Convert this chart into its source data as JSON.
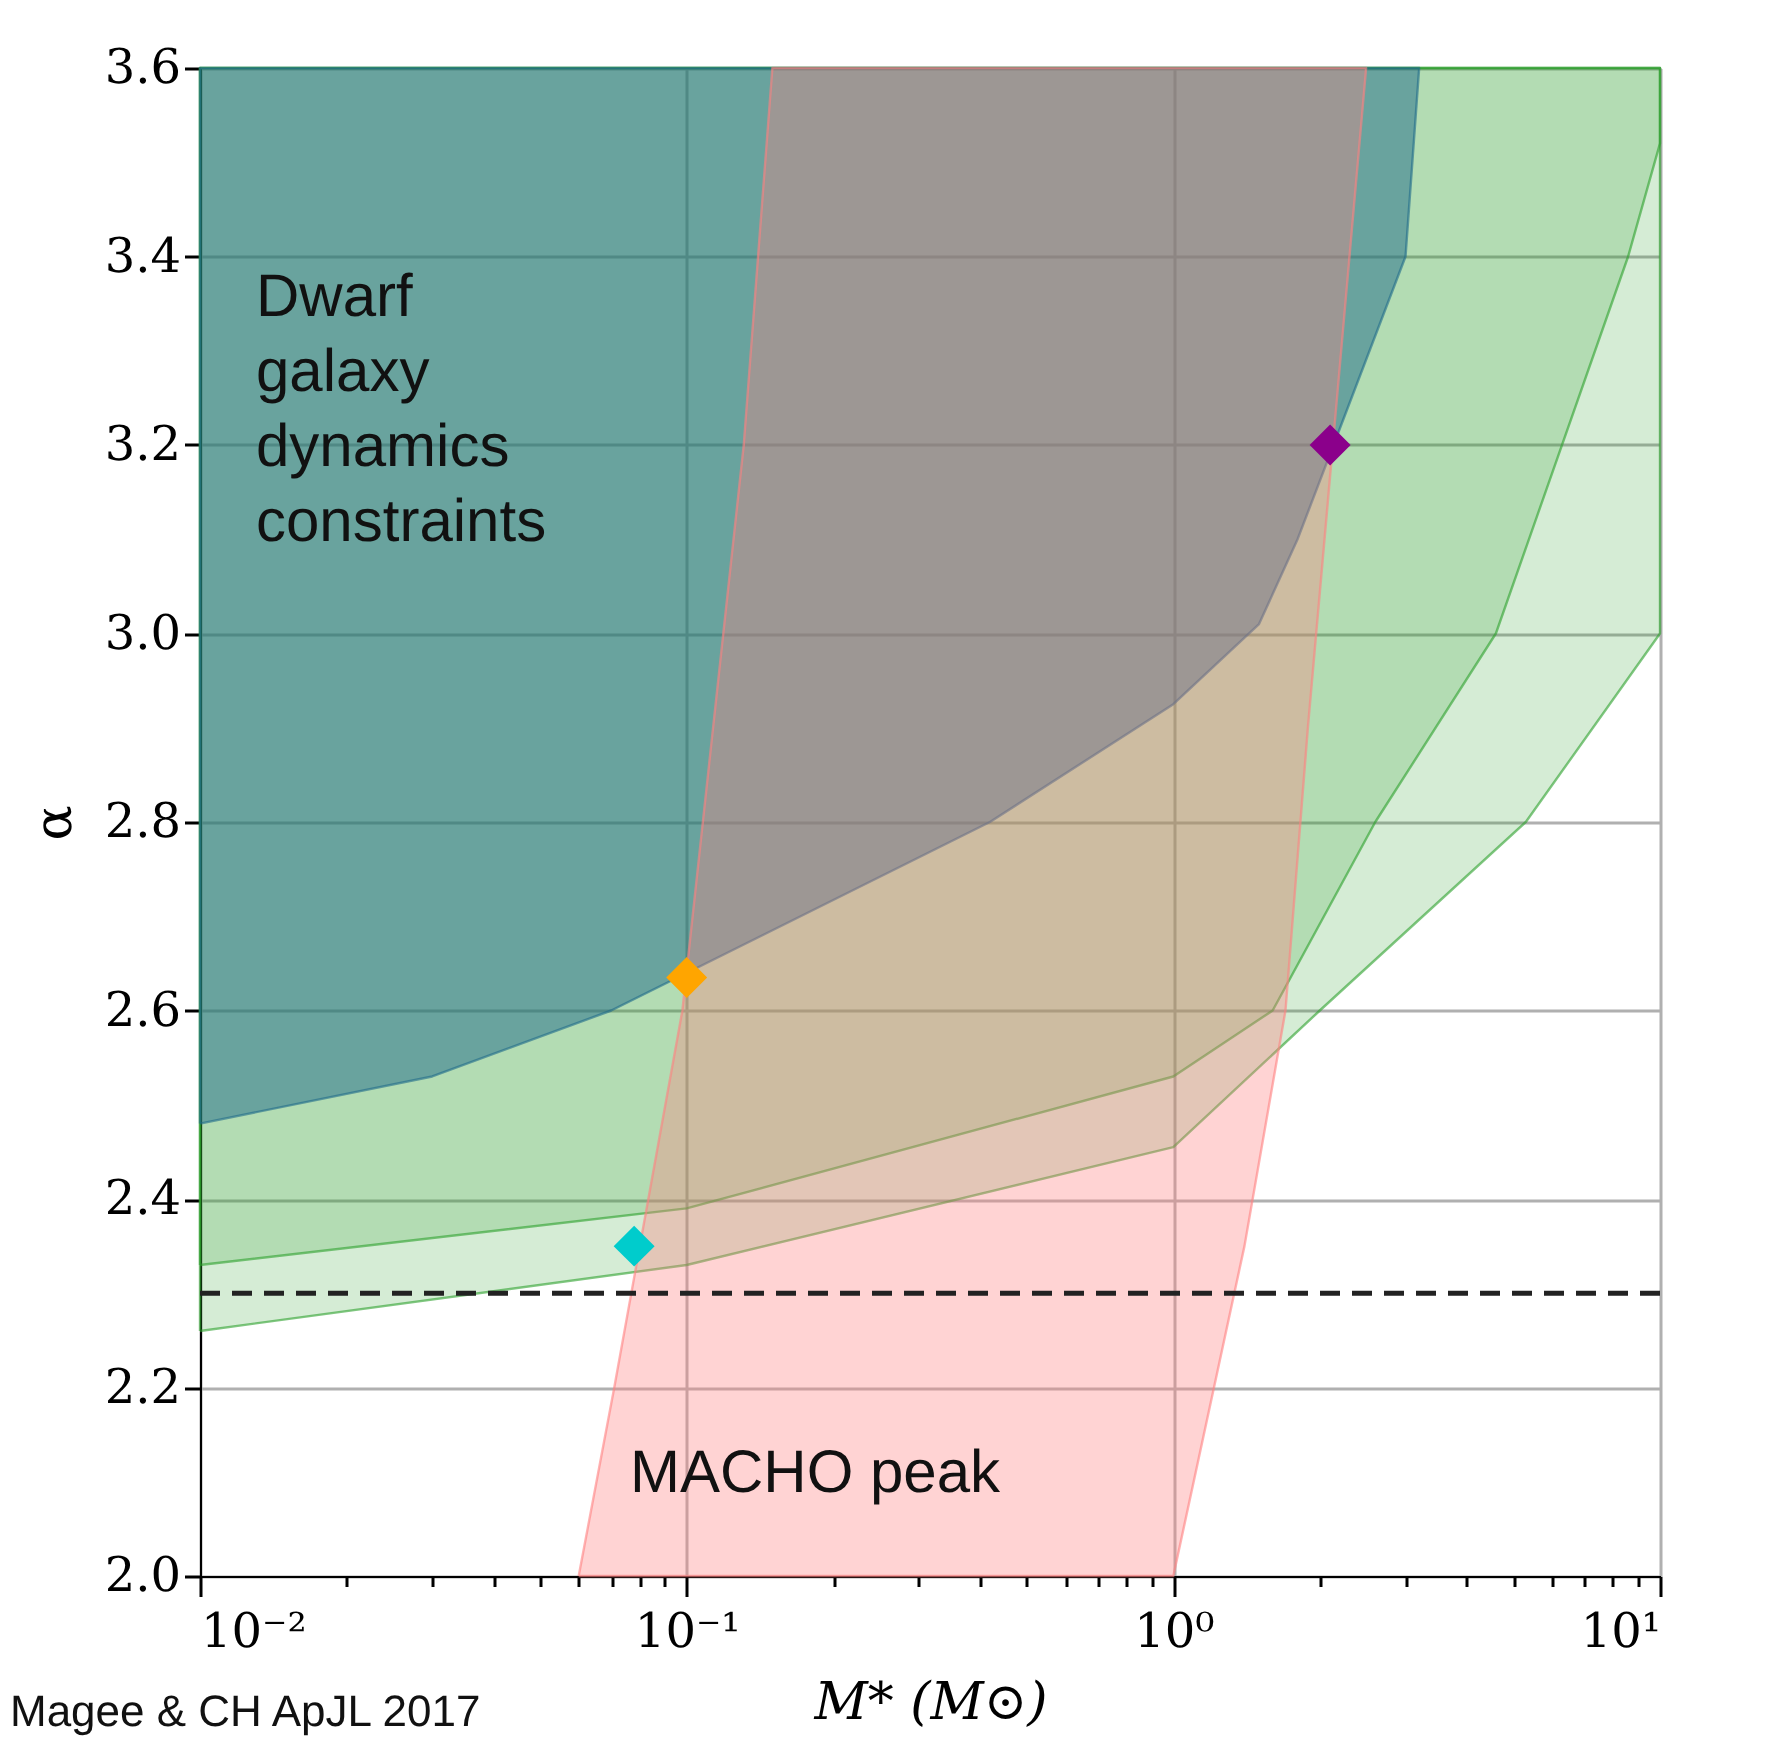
{
  "chart_data": {
    "type": "area",
    "xlabel": "M* (M⊙)",
    "ylabel": "α",
    "log": "x",
    "grid": true,
    "legend": false,
    "xlim": [
      0.01,
      10
    ],
    "ylim": [
      2.0,
      3.6
    ],
    "xticks": [
      {
        "value": 0.01,
        "label": "10⁻²"
      },
      {
        "value": 0.02,
        "label": null
      },
      {
        "value": 0.03,
        "label": null
      },
      {
        "value": 0.04,
        "label": null
      },
      {
        "value": 0.05,
        "label": null
      },
      {
        "value": 0.06,
        "label": null
      },
      {
        "value": 0.07,
        "label": null
      },
      {
        "value": 0.08,
        "label": null
      },
      {
        "value": 0.09,
        "label": null
      },
      {
        "value": 0.1,
        "label": "10⁻¹"
      },
      {
        "value": 0.2,
        "label": null
      },
      {
        "value": 0.3,
        "label": null
      },
      {
        "value": 0.4,
        "label": null
      },
      {
        "value": 0.5,
        "label": null
      },
      {
        "value": 0.6,
        "label": null
      },
      {
        "value": 0.7,
        "label": null
      },
      {
        "value": 0.8,
        "label": null
      },
      {
        "value": 0.9,
        "label": null
      },
      {
        "value": 1,
        "label": "10⁰"
      },
      {
        "value": 2,
        "label": null
      },
      {
        "value": 3,
        "label": null
      },
      {
        "value": 4,
        "label": null
      },
      {
        "value": 5,
        "label": null
      },
      {
        "value": 6,
        "label": null
      },
      {
        "value": 7,
        "label": null
      },
      {
        "value": 8,
        "label": null
      },
      {
        "value": 9,
        "label": null
      },
      {
        "value": 10,
        "label": "10¹"
      }
    ],
    "yticks": [
      {
        "value": 2.0,
        "label": "2.0"
      },
      {
        "value": 2.2,
        "label": "2.2"
      },
      {
        "value": 2.4,
        "label": "2.4"
      },
      {
        "value": 2.6,
        "label": "2.6"
      },
      {
        "value": 2.8,
        "label": "2.8"
      },
      {
        "value": 3.0,
        "label": "3.0"
      },
      {
        "value": 3.2,
        "label": "3.2"
      },
      {
        "value": 3.4,
        "label": "3.4"
      },
      {
        "value": 3.6,
        "label": "3.6"
      }
    ],
    "series": [
      {
        "color": "#2ca02c",
        "x": [
          0.01,
          0.1,
          1.0,
          2.0,
          5.3,
          10,
          10,
          0.01
        ],
        "values": [
          2.26,
          2.33,
          2.455,
          2.6,
          2.8,
          3.0,
          3.6,
          3.6
        ]
      },
      {
        "color": "#2ca02c",
        "x": [
          0.01,
          0.1,
          1.0,
          1.6,
          2.6,
          4.6,
          8.6,
          10,
          10,
          0.01
        ],
        "values": [
          2.33,
          2.39,
          2.53,
          2.6,
          2.8,
          3.0,
          3.4,
          3.52,
          3.6,
          3.6
        ]
      },
      {
        "color": "#1f6a8a",
        "x": [
          0.01,
          0.03,
          0.07,
          0.42,
          1.0,
          1.5,
          1.8,
          3.0,
          3.2,
          0.01
        ],
        "values": [
          2.48,
          2.53,
          2.6,
          2.8,
          2.925,
          3.01,
          3.1,
          3.4,
          3.6,
          3.6
        ]
      },
      {
        "color": "#ff8080",
        "x": [
          0.06,
          0.071,
          0.098,
          0.131,
          0.15,
          2.49,
          1.89,
          1.7,
          1.4,
          1.0
        ],
        "values": [
          2.0,
          2.2,
          2.6,
          3.2,
          3.6,
          3.6,
          2.9,
          2.6,
          2.35,
          2.0
        ]
      },
      {
        "type": "scatter",
        "marker": "diamond",
        "x": [
          0.078,
          0.1,
          2.1
        ],
        "values": [
          2.35,
          2.635,
          3.2
        ],
        "colors": [
          "#00cccc",
          "#ffa500",
          "#8b008b"
        ]
      }
    ],
    "ref_lines": [
      {
        "axis": "y",
        "value": 2.3,
        "label": null,
        "color": "#222222",
        "line_style": "dashed"
      }
    ],
    "annotations": [
      "Dwarf\ngalaxy\ndynamics\nconstraints",
      "MACHO peak",
      "Magee & CH ApJL 2017"
    ]
  }
}
